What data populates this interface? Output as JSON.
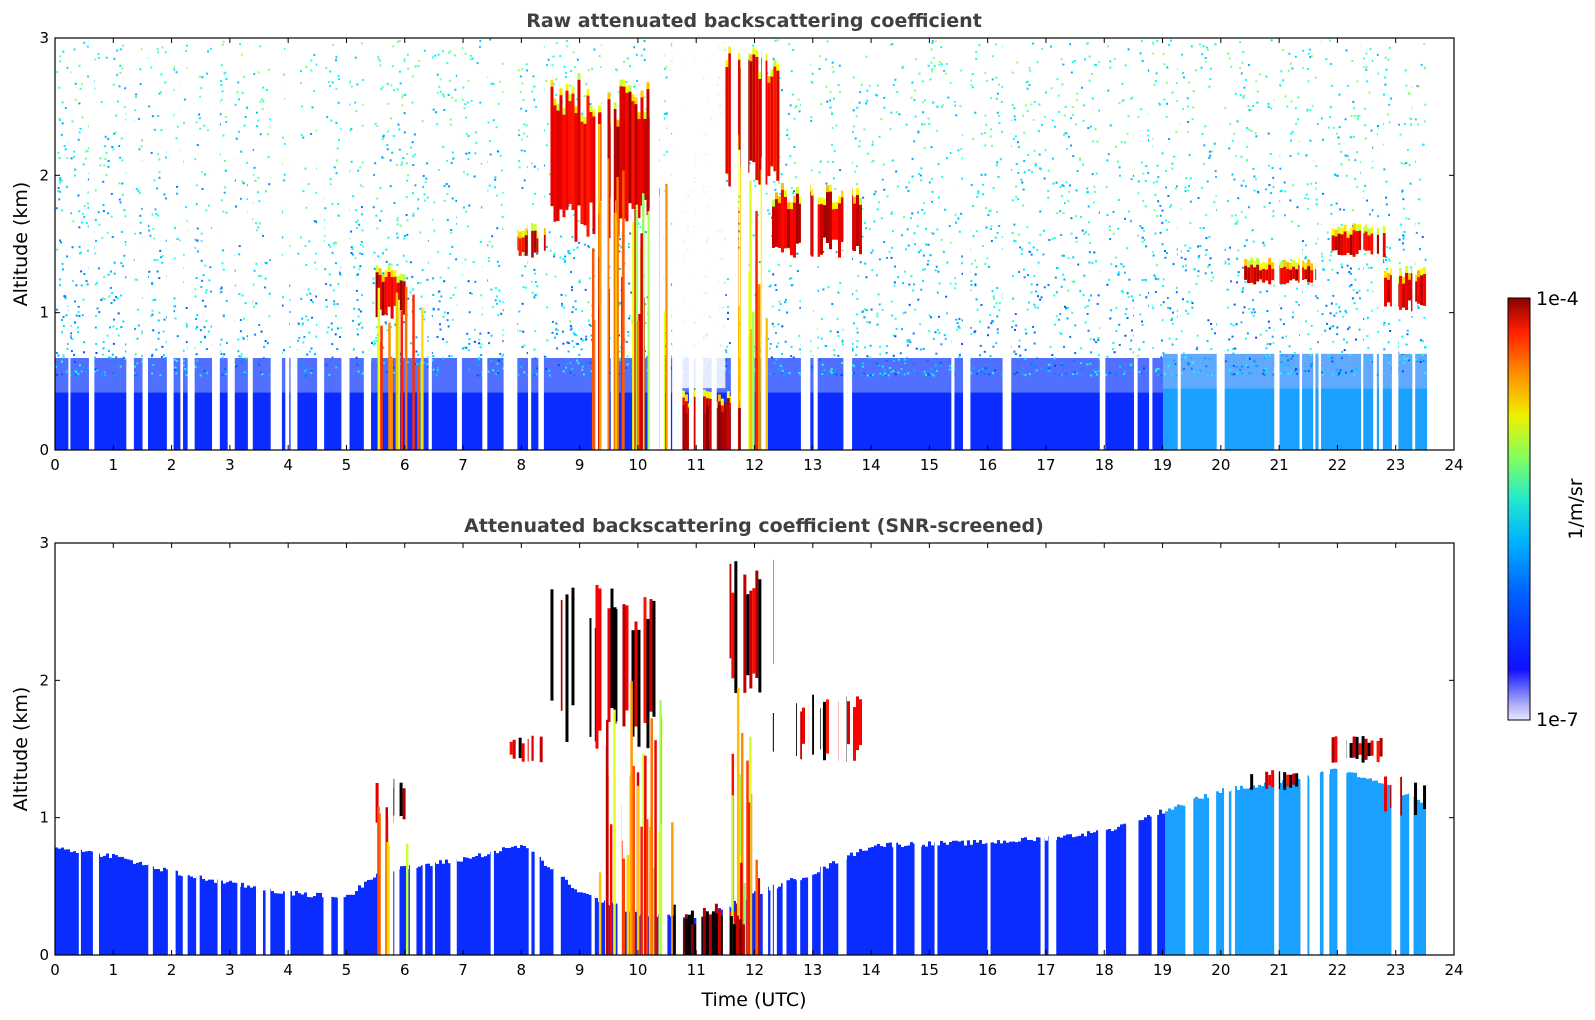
{
  "chart_data": [
    {
      "type": "heatmap",
      "title": "Raw attenuated backscattering coefficient",
      "xlabel": "",
      "ylabel": "Altitude (km)",
      "xlim": [
        0,
        24
      ],
      "ylim": [
        0,
        3
      ],
      "xticks": [
        "0",
        "1",
        "2",
        "3",
        "4",
        "5",
        "6",
        "7",
        "8",
        "9",
        "10",
        "11",
        "12",
        "13",
        "14",
        "15",
        "16",
        "17",
        "18",
        "19",
        "20",
        "21",
        "22",
        "23",
        "24"
      ],
      "yticks": [
        "0",
        "1",
        "2",
        "3"
      ],
      "data_coverage": [
        0,
        23.5
      ],
      "features": [
        {
          "name": "boundary layer",
          "x": [
            0,
            23.5
          ],
          "y": [
            0,
            0.5
          ]
        },
        {
          "name": "cloud",
          "x": [
            5.5,
            6.0
          ],
          "y": [
            0.95,
            1.3
          ]
        },
        {
          "name": "cloud",
          "x": [
            7.8,
            8.4
          ],
          "y": [
            1.4,
            1.6
          ]
        },
        {
          "name": "cloud",
          "x": [
            8.5,
            10.3
          ],
          "y": [
            1.5,
            2.7
          ]
        },
        {
          "name": "fog",
          "x": [
            10.6,
            11.8
          ],
          "y": [
            0,
            0.4
          ]
        },
        {
          "name": "cloud",
          "x": [
            11.5,
            12.4
          ],
          "y": [
            1.9,
            2.9
          ]
        },
        {
          "name": "cloud",
          "x": [
            12.3,
            13.8
          ],
          "y": [
            1.4,
            1.9
          ]
        },
        {
          "name": "cloud",
          "x": [
            20.4,
            21.6
          ],
          "y": [
            1.2,
            1.35
          ]
        },
        {
          "name": "cloud",
          "x": [
            21.9,
            22.8
          ],
          "y": [
            1.4,
            1.6
          ]
        },
        {
          "name": "cloud",
          "x": [
            22.8,
            23.5
          ],
          "y": [
            1.0,
            1.3
          ]
        }
      ]
    },
    {
      "type": "heatmap",
      "title": "Attenuated backscattering coefficient (SNR-screened)",
      "xlabel": "Time (UTC)",
      "ylabel": "Altitude (km)",
      "xlim": [
        0,
        24
      ],
      "ylim": [
        0,
        3
      ],
      "xticks": [
        "0",
        "1",
        "2",
        "3",
        "4",
        "5",
        "6",
        "7",
        "8",
        "9",
        "10",
        "11",
        "12",
        "13",
        "14",
        "15",
        "16",
        "17",
        "18",
        "19",
        "20",
        "21",
        "22",
        "23",
        "24"
      ],
      "yticks": [
        "0",
        "1",
        "2",
        "3"
      ],
      "data_coverage": [
        0,
        23.5
      ],
      "boundary_layer_top_km": [
        [
          0,
          0.78
        ],
        [
          1,
          0.72
        ],
        [
          2,
          0.6
        ],
        [
          3,
          0.52
        ],
        [
          4,
          0.45
        ],
        [
          5,
          0.42
        ],
        [
          5.5,
          0.6
        ],
        [
          7,
          0.7
        ],
        [
          8,
          0.8
        ],
        [
          9,
          0.45
        ],
        [
          10,
          0.3
        ],
        [
          11,
          0.25
        ],
        [
          12,
          0.45
        ],
        [
          13,
          0.6
        ],
        [
          14,
          0.8
        ],
        [
          16,
          0.82
        ],
        [
          17,
          0.85
        ],
        [
          18,
          0.9
        ],
        [
          19,
          1.05
        ],
        [
          20,
          1.2
        ],
        [
          21,
          1.25
        ],
        [
          22,
          1.35
        ],
        [
          23,
          1.2
        ],
        [
          23.5,
          1.1
        ]
      ]
    }
  ],
  "colorbar": {
    "max_label": "1e-4",
    "min_label": "1e-7",
    "unit_label": "1/m/sr",
    "colormap": "jet"
  }
}
